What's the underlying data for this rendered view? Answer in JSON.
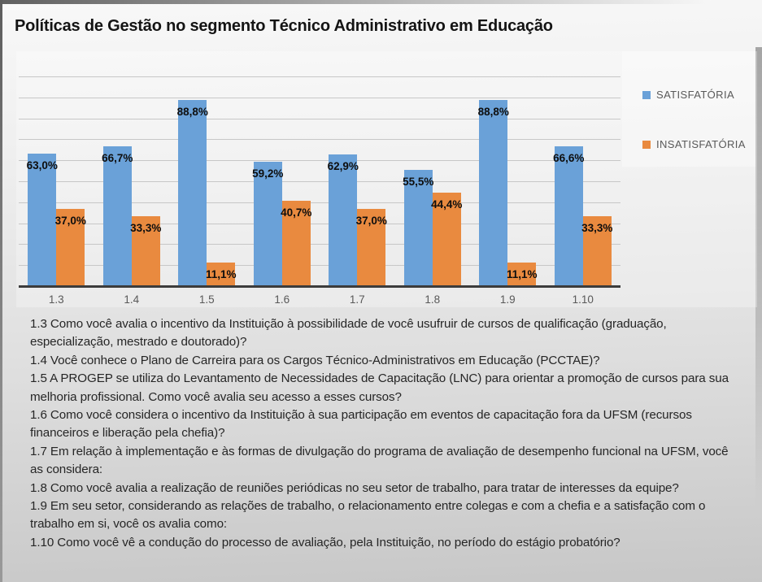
{
  "title": "Políticas de Gestão no segmento Técnico Administrativo em Educação",
  "chart_data": {
    "type": "bar",
    "title": "Políticas de Gestão no segmento Técnico Administrativo em Educação",
    "categories": [
      "1.3",
      "1.4",
      "1.5",
      "1.6",
      "1.7",
      "1.8",
      "1.9",
      "1.10"
    ],
    "series": [
      {
        "name": "SATISFATÓRIA",
        "color": "#6aa1d8",
        "values": [
          63.0,
          66.7,
          88.8,
          59.2,
          62.9,
          55.5,
          88.8,
          66.6
        ],
        "labels": [
          "63,0%",
          "66,7%",
          "88,8%",
          "59,2%",
          "62,9%",
          "55,5%",
          "88,8%",
          "66,6%"
        ]
      },
      {
        "name": "INSATISFATÓRIA",
        "color": "#e98a3f",
        "values": [
          37.0,
          33.3,
          11.1,
          40.7,
          37.0,
          44.4,
          11.1,
          33.3
        ],
        "labels": [
          "37,0%",
          "33,3%",
          "11,1%",
          "40,7%",
          "37,0%",
          "44,4%",
          "11,1%",
          "33,3%"
        ]
      }
    ],
    "xlabel": "",
    "ylabel": "",
    "ylim": [
      0,
      100
    ],
    "grid": true,
    "gridline_step_pct": 10,
    "legend_position": "right",
    "value_label_position": "inside-end",
    "value_label_format": "##,#%"
  },
  "colors": {
    "satisfatoria": "#6aa1d8",
    "insatisfatoria": "#e98a3f",
    "gridline": "#c7c7c7",
    "axis": "#3c3c3c",
    "tick_text": "#595959"
  },
  "questions": [
    "1.3 Como você avalia o incentivo da Instituição à possibilidade de você usufruir de cursos de qualificação (graduação, especialização, mestrado e doutorado)?",
    "1.4 Você conhece o Plano de Carreira para os Cargos Técnico-Administrativos em Educação (PCCTAE)?",
    "1.5 A PROGEP se utiliza do Levantamento de Necessidades de Capacitação (LNC) para orientar a promoção de cursos para sua melhoria profissional. Como você avalia seu acesso a esses cursos?",
    "1.6 Como você considera o incentivo da Instituição à sua participação em eventos de capacitação fora da UFSM (recursos financeiros e liberação pela chefia)?",
    "1.7 Em relação à implementação e às formas de divulgação do programa de avaliação de desempenho funcional na UFSM, você as considera:",
    "1.8 Como você avalia a realização de reuniões periódicas no seu setor de trabalho, para tratar de interesses da equipe?",
    "1.9 Em seu setor, considerando as relações de trabalho, o relacionamento entre colegas e com a chefia e a satisfação com o trabalho em si, você os avalia como:",
    "1.10 Como você vê a condução do processo de avaliação, pela Instituição, no período do estágio probatório?"
  ]
}
